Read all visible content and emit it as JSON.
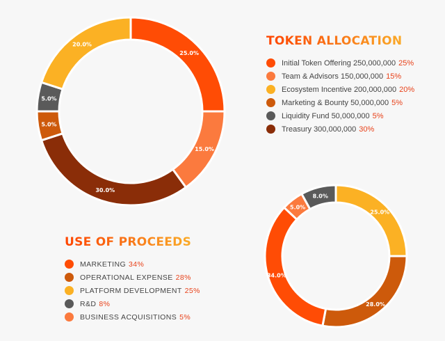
{
  "chart_data": [
    {
      "type": "pie",
      "title": "TOKEN ALLOCATION",
      "slices": [
        {
          "name": "Initial Token Offering",
          "amount": "250,000,000",
          "percent_label": "25%",
          "value": 25,
          "slice_label": "25.0%",
          "color": "#ff4c05"
        },
        {
          "name": "Team & Advisors",
          "amount": "150,000,000",
          "percent_label": "15%",
          "value": 15,
          "slice_label": "15.0%",
          "color": "#fb7a3e"
        },
        {
          "name": "Ecosystem Incentive",
          "amount": "200,000,000",
          "percent_label": "20%",
          "value": 20,
          "slice_label": "20.0%",
          "color": "#fbb124"
        },
        {
          "name": "Marketing & Bounty",
          "amount": "50,000,000",
          "percent_label": "5%",
          "value": 5,
          "slice_label": "5.0%",
          "color": "#cd5a0b"
        },
        {
          "name": "Liquidity Fund",
          "amount": "50,000,000",
          "percent_label": "5%",
          "value": 5,
          "slice_label": "5.0%",
          "color": "#5a5a5a"
        },
        {
          "name": "Treasury",
          "amount": "300,000,000",
          "percent_label": "30%",
          "value": 30,
          "slice_label": "30.0%",
          "color": "#8a2d08"
        }
      ]
    },
    {
      "type": "pie",
      "title": "USE OF PROCEEDS",
      "slices": [
        {
          "name": "MARKETING",
          "percent_label": "34%",
          "value": 34,
          "slice_label": "34.0%",
          "color": "#ff4c05"
        },
        {
          "name": "OPERATIONAL EXPENSE",
          "percent_label": "28%",
          "value": 28,
          "slice_label": "28.0%",
          "color": "#cd5a0b"
        },
        {
          "name": "PLATFORM DEVELOPMENT",
          "percent_label": "25%",
          "value": 25,
          "slice_label": "25.0%",
          "color": "#fbb124"
        },
        {
          "name": "R&D",
          "percent_label": "8%",
          "value": 8,
          "slice_label": "8.0%",
          "color": "#5a5a5a"
        },
        {
          "name": "BUSINESS ACQUISITIONS",
          "percent_label": "5%",
          "value": 5,
          "slice_label": "5.0%",
          "color": "#fb7a3e"
        }
      ]
    }
  ]
}
